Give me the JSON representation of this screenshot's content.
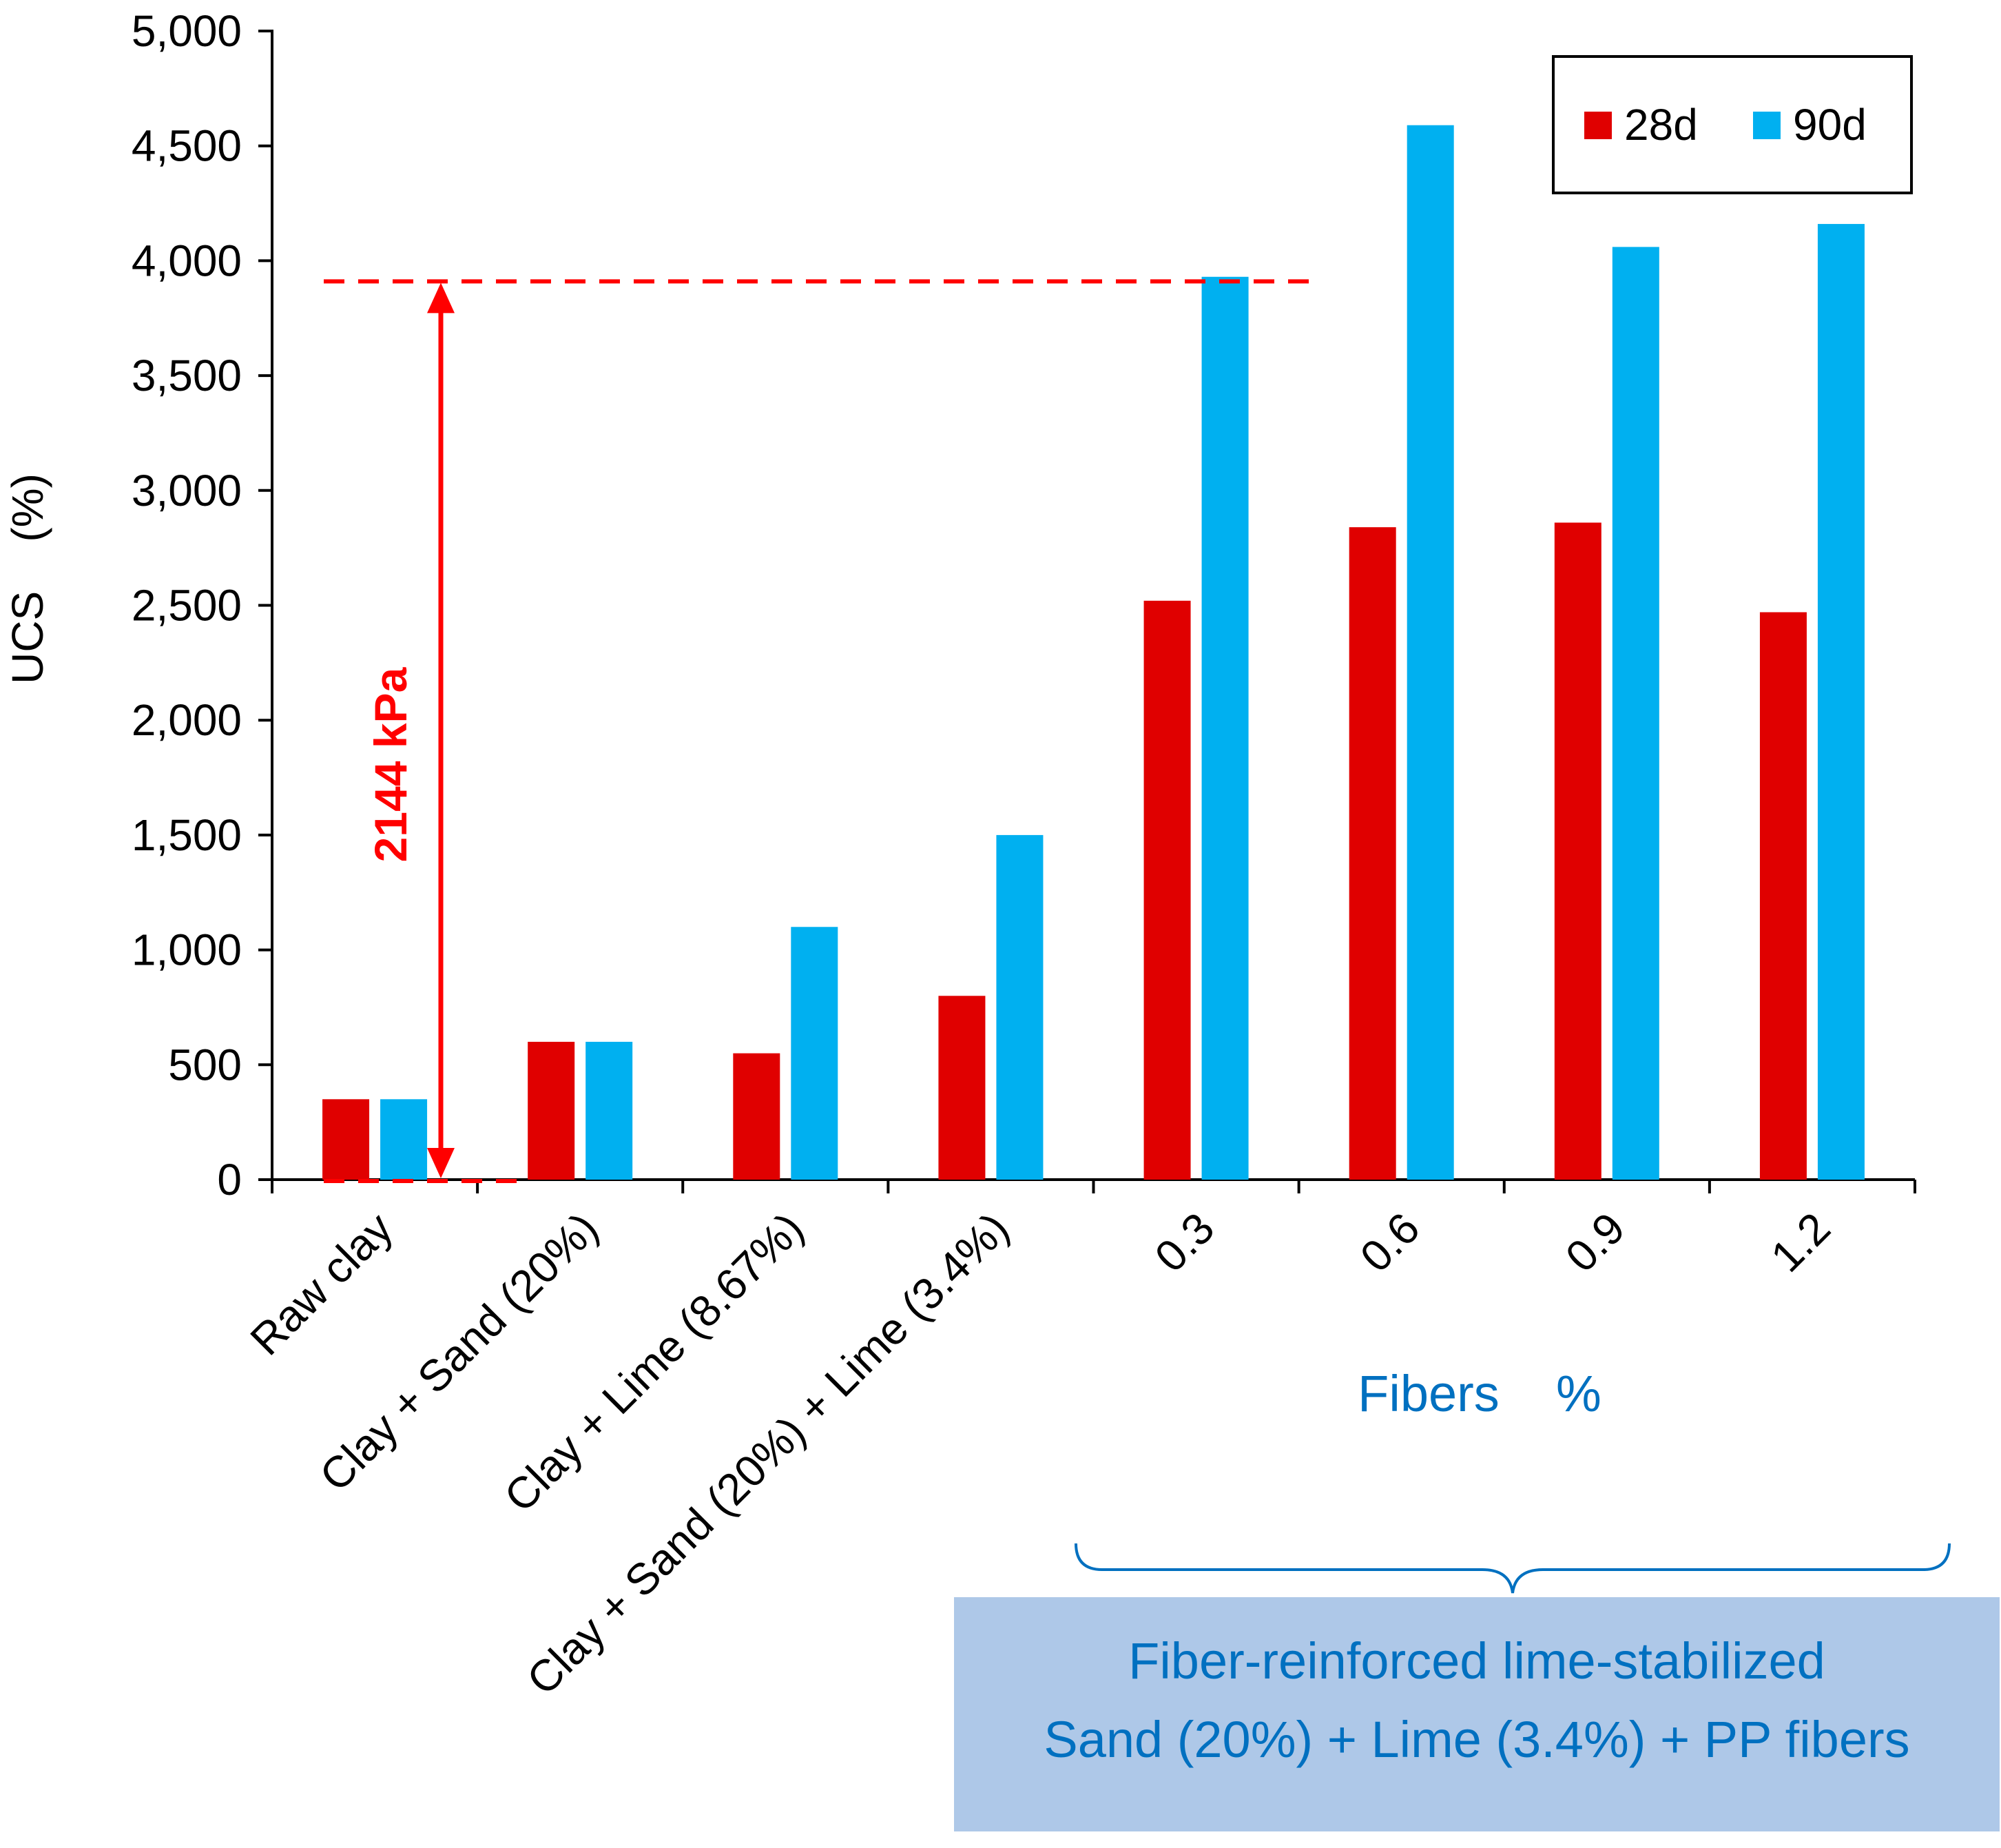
{
  "chart_data": {
    "type": "bar",
    "title": "",
    "ylabel": "UCS    (%)",
    "xlabel": "Fibers    %",
    "ylim": [
      0,
      5000
    ],
    "yticks": [
      0,
      500,
      1000,
      1500,
      2000,
      2500,
      3000,
      3500,
      4000,
      4500,
      5000
    ],
    "ytick_labels": [
      "0",
      "500",
      "1,000",
      "1,500",
      "2,000",
      "2,500",
      "3,000",
      "3,500",
      "4,000",
      "4,500",
      "5,000"
    ],
    "categories": [
      "Raw clay",
      "Clay + Sand (20%)",
      "Clay + Lime (8.67%)",
      "Clay + Sand (20%) + Lime (3.4%)",
      "0.3",
      "0.6",
      "0.9",
      "1.2"
    ],
    "series": [
      {
        "name": "28d",
        "color": "#e00000",
        "values": [
          350,
          600,
          550,
          800,
          2520,
          2840,
          2860,
          2470
        ]
      },
      {
        "name": "90d",
        "color": "#00b0f0",
        "values": [
          350,
          600,
          1100,
          1500,
          3930,
          4590,
          4060,
          4160
        ]
      }
    ],
    "legend": {
      "position": "top-right",
      "labels": [
        "28d",
        "90d"
      ]
    },
    "annotations": {
      "difference_label": "2144 kPa",
      "difference_value": 2144,
      "reference_line_value": 3910,
      "group_line1": "Fiber-reinforced lime-stabilized",
      "group_line2": "Sand (20%) + Lime (3.4%) + PP fibers"
    },
    "colors": {
      "annotation_red": "#ff0000",
      "group_text_blue": "#0070c0",
      "group_box_fill": "#aec8e8"
    }
  }
}
